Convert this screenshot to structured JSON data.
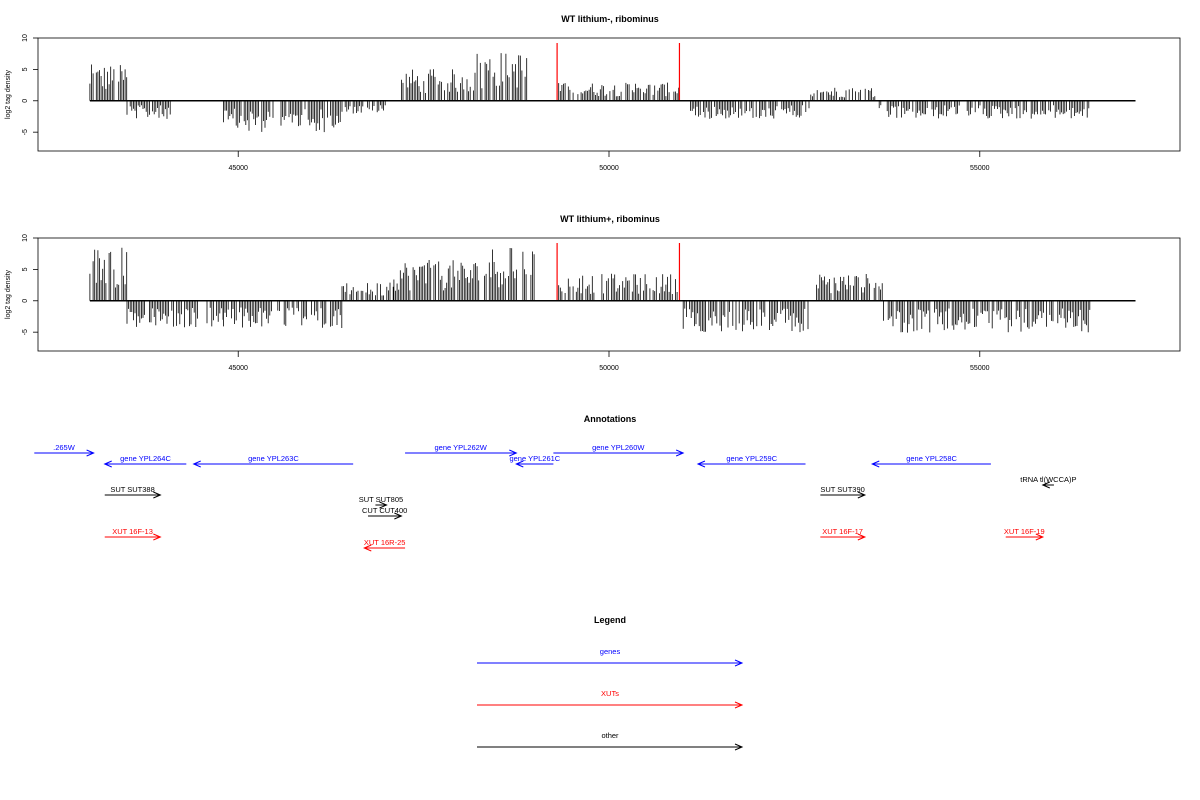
{
  "chart_data": [
    {
      "type": "bar",
      "title": "WT lithium-, ribominus",
      "ylabel": "log2 tag density",
      "xlabel": "",
      "xlim": [
        42300,
        57700
      ],
      "ylim": [
        -8,
        10
      ],
      "xticks": [
        "45000",
        "50000",
        "55000"
      ],
      "yticks": [
        "-5",
        "0",
        "5",
        "10"
      ],
      "grid": false,
      "bar_color": "#000000",
      "marker_color": "#ff0000",
      "markers_x": [
        49300,
        50950
      ],
      "approx_bar_regions": [
        {
          "from": 43000,
          "to": 43500,
          "level": 4
        },
        {
          "from": 43500,
          "to": 44100,
          "level": -2
        },
        {
          "from": 44800,
          "to": 46400,
          "level": -3.5
        },
        {
          "from": 46400,
          "to": 47000,
          "level": -1.5
        },
        {
          "from": 47200,
          "to": 48200,
          "level": 3.5
        },
        {
          "from": 48200,
          "to": 48900,
          "level": 5.5
        },
        {
          "from": 49300,
          "to": 50950,
          "level": 2
        },
        {
          "from": 51100,
          "to": 52700,
          "level": -2
        },
        {
          "from": 52700,
          "to": 53600,
          "level": 1.5
        },
        {
          "from": 53600,
          "to": 56500,
          "level": -2
        }
      ]
    },
    {
      "type": "bar",
      "title": "WT lithium+, ribominus",
      "ylabel": "log2 tag density",
      "xlabel": "",
      "xlim": [
        42300,
        57700
      ],
      "ylim": [
        -8,
        10
      ],
      "xticks": [
        "45000",
        "50000",
        "55000"
      ],
      "yticks": [
        "-5",
        "0",
        "5",
        "10"
      ],
      "grid": false,
      "bar_color": "#000000",
      "marker_color": "#ff0000",
      "markers_x": [
        49300,
        50950
      ],
      "approx_bar_regions": [
        {
          "from": 43000,
          "to": 43500,
          "level": 6
        },
        {
          "from": 43500,
          "to": 44800,
          "level": -3
        },
        {
          "from": 44800,
          "to": 46400,
          "level": -3
        },
        {
          "from": 46400,
          "to": 47100,
          "level": 2
        },
        {
          "from": 47100,
          "to": 48300,
          "level": 4.5
        },
        {
          "from": 48300,
          "to": 49000,
          "level": 6
        },
        {
          "from": 49300,
          "to": 50950,
          "level": 3
        },
        {
          "from": 51000,
          "to": 52700,
          "level": -3.5
        },
        {
          "from": 52800,
          "to": 53700,
          "level": 3
        },
        {
          "from": 53700,
          "to": 56500,
          "level": -3.5
        }
      ]
    }
  ],
  "annotations": {
    "title": "Annotations",
    "features": [
      {
        "label": ".265W",
        "color": "#0000ff",
        "from": 42250,
        "to": 43050,
        "dir": "right",
        "row": 0
      },
      {
        "label": "gene YPL264C",
        "color": "#0000ff",
        "from": 43200,
        "to": 44300,
        "dir": "left",
        "row": 1
      },
      {
        "label": "gene YPL263C",
        "color": "#0000ff",
        "from": 44400,
        "to": 46550,
        "dir": "left",
        "row": 1
      },
      {
        "label": "gene YPL262W",
        "color": "#0000ff",
        "from": 47250,
        "to": 48750,
        "dir": "right",
        "row": 0
      },
      {
        "label": "gene YPL261C",
        "color": "#0000ff",
        "from": 48750,
        "to": 49250,
        "dir": "left",
        "row": 1
      },
      {
        "label": "gene YPL260W",
        "color": "#0000ff",
        "from": 49250,
        "to": 51000,
        "dir": "right",
        "row": 0
      },
      {
        "label": "gene YPL259C",
        "color": "#0000ff",
        "from": 51200,
        "to": 52650,
        "dir": "left",
        "row": 1
      },
      {
        "label": "gene YPL258C",
        "color": "#0000ff",
        "from": 53550,
        "to": 55150,
        "dir": "left",
        "row": 1
      },
      {
        "label": "tRNA tl(WCCA)P",
        "color": "#000000",
        "from": 55850,
        "to": 56000,
        "dir": "left",
        "row": 2
      },
      {
        "label": "SUT SUT388",
        "color": "#000000",
        "from": 43200,
        "to": 43950,
        "dir": "right",
        "row": 3
      },
      {
        "label": "SUT SUT390",
        "color": "#000000",
        "from": 52850,
        "to": 53450,
        "dir": "right",
        "row": 3
      },
      {
        "label": "SUT SUT805",
        "color": "#000000",
        "from": 46850,
        "to": 47000,
        "dir": "right",
        "row": 4
      },
      {
        "label": "CUT CUT400",
        "color": "#000000",
        "from": 46750,
        "to": 47200,
        "dir": "right",
        "row": 5
      },
      {
        "label": "XUT 16F-13",
        "color": "#ff0000",
        "from": 43200,
        "to": 43950,
        "dir": "right",
        "row": 6
      },
      {
        "label": "XUT 16R-25",
        "color": "#ff0000",
        "from": 46700,
        "to": 47250,
        "dir": "left",
        "row": 7
      },
      {
        "label": "XUT 16F-17",
        "color": "#ff0000",
        "from": 52850,
        "to": 53450,
        "dir": "right",
        "row": 6
      },
      {
        "label": "XUT 16F-19",
        "color": "#ff0000",
        "from": 55350,
        "to": 55850,
        "dir": "right",
        "row": 6
      }
    ]
  },
  "legend": {
    "title": "Legend",
    "entries": [
      {
        "label": "genes",
        "color": "#0000ff"
      },
      {
        "label": "XUTs",
        "color": "#ff0000"
      },
      {
        "label": "other",
        "color": "#000000"
      }
    ]
  }
}
